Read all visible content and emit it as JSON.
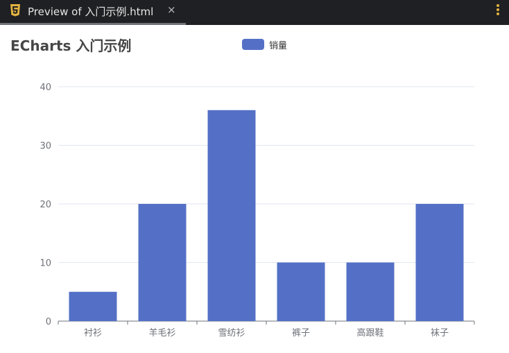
{
  "tab": {
    "title": "Preview of 入门示例.html",
    "close_glyph": "×",
    "icon": "html5-icon"
  },
  "toolbar": {
    "more_icon": "more-vertical-icon"
  },
  "colors": {
    "bar": "#5470c6",
    "axis": "#6e7079",
    "grid": "#e0e6f1",
    "tab_accent": "#e3b341"
  },
  "chart_data": {
    "type": "bar",
    "title": "ECharts 入门示例",
    "legend": [
      "销量"
    ],
    "legend_position": "top-center",
    "categories": [
      "衬衫",
      "羊毛衫",
      "雪纺衫",
      "裤子",
      "高跟鞋",
      "袜子"
    ],
    "series": [
      {
        "name": "销量",
        "values": [
          5,
          20,
          36,
          10,
          10,
          20
        ]
      }
    ],
    "ylim": [
      0,
      40
    ],
    "yticks": [
      0,
      10,
      20,
      30,
      40
    ],
    "grid": true
  }
}
